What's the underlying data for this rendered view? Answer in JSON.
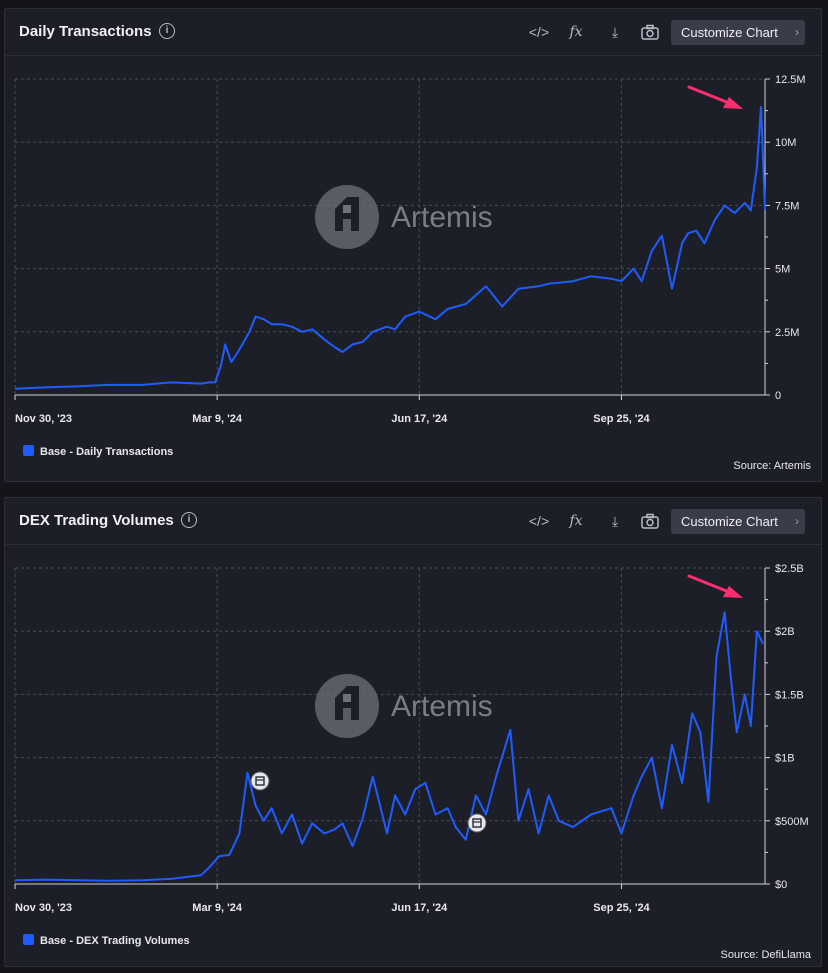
{
  "charts": [
    {
      "title": "Daily Transactions",
      "customize_label": "Customize Chart",
      "legend_label": "Base - Daily Transactions",
      "source": "Source: Artemis",
      "watermark": "Artemis",
      "y_ticks": [
        "0",
        "2.5M",
        "5M",
        "7.5M",
        "10M",
        "12.5M"
      ],
      "x_ticks": [
        "Nov 30, '23",
        "Mar 9, '24",
        "Jun 17, '24",
        "Sep 25, '24"
      ]
    },
    {
      "title": "DEX Trading Volumes",
      "customize_label": "Customize Chart",
      "legend_label": "Base - DEX Trading Volumes",
      "source": "Source: DefiLlama",
      "watermark": "Artemis",
      "y_ticks": [
        "$0",
        "$500M",
        "$1B",
        "$1.5B",
        "$2B",
        "$2.5B"
      ],
      "x_ticks": [
        "Nov 30, '23",
        "Mar 9, '24",
        "Jun 17, '24",
        "Sep 25, '24"
      ]
    }
  ],
  "chart_data": [
    {
      "type": "line",
      "title": "Daily Transactions",
      "ylim": [
        0,
        12500000
      ],
      "xlim": [
        "2023-11-30",
        "2024-12-05"
      ],
      "series": [
        {
          "name": "Base - Daily Transactions",
          "color": "#1f5cff",
          "x": [
            "2023-11-30",
            "2023-12-15",
            "2024-01-01",
            "2024-01-15",
            "2024-02-01",
            "2024-02-15",
            "2024-03-01",
            "2024-03-05",
            "2024-03-08",
            "2024-03-11",
            "2024-03-13",
            "2024-03-16",
            "2024-03-20",
            "2024-03-25",
            "2024-03-28",
            "2024-04-01",
            "2024-04-05",
            "2024-04-10",
            "2024-04-15",
            "2024-04-20",
            "2024-04-25",
            "2024-05-01",
            "2024-05-06",
            "2024-05-10",
            "2024-05-15",
            "2024-05-20",
            "2024-05-25",
            "2024-06-01",
            "2024-06-05",
            "2024-06-10",
            "2024-06-17",
            "2024-06-25",
            "2024-07-01",
            "2024-07-10",
            "2024-07-20",
            "2024-07-28",
            "2024-08-05",
            "2024-08-15",
            "2024-08-20",
            "2024-09-01",
            "2024-09-10",
            "2024-09-20",
            "2024-09-25",
            "2024-10-01",
            "2024-10-05",
            "2024-10-10",
            "2024-10-15",
            "2024-10-20",
            "2024-10-25",
            "2024-10-28",
            "2024-11-01",
            "2024-11-05",
            "2024-11-10",
            "2024-11-15",
            "2024-11-20",
            "2024-11-25",
            "2024-11-28",
            "2024-12-01",
            "2024-12-03",
            "2024-12-05"
          ],
          "y": [
            250000,
            300000,
            350000,
            400000,
            400000,
            500000,
            450000,
            500000,
            500000,
            1200000,
            2000000,
            1300000,
            1800000,
            2500000,
            3100000,
            3000000,
            2800000,
            2800000,
            2700000,
            2500000,
            2600000,
            2200000,
            1900000,
            1700000,
            2000000,
            2100000,
            2500000,
            2700000,
            2600000,
            3100000,
            3300000,
            3000000,
            3400000,
            3600000,
            4300000,
            3500000,
            4200000,
            4300000,
            4400000,
            4500000,
            4700000,
            4600000,
            4500000,
            5000000,
            4500000,
            5700000,
            6300000,
            4200000,
            6000000,
            6400000,
            6500000,
            6000000,
            6900000,
            7500000,
            7200000,
            7600000,
            7300000,
            9000000,
            11400000,
            7300000
          ]
        }
      ]
    },
    {
      "type": "line",
      "title": "DEX Trading Volumes",
      "ylim": [
        0,
        2500000000
      ],
      "xlim": [
        "2023-11-30",
        "2024-12-05"
      ],
      "series": [
        {
          "name": "Base - DEX Trading Volumes",
          "color": "#1f5cff",
          "x": [
            "2023-11-30",
            "2023-12-15",
            "2024-01-01",
            "2024-01-15",
            "2024-02-01",
            "2024-02-15",
            "2024-03-01",
            "2024-03-05",
            "2024-03-10",
            "2024-03-15",
            "2024-03-20",
            "2024-03-24",
            "2024-03-28",
            "2024-04-01",
            "2024-04-05",
            "2024-04-10",
            "2024-04-15",
            "2024-04-20",
            "2024-04-25",
            "2024-05-01",
            "2024-05-06",
            "2024-05-10",
            "2024-05-15",
            "2024-05-20",
            "2024-05-25",
            "2024-06-01",
            "2024-06-05",
            "2024-06-10",
            "2024-06-15",
            "2024-06-20",
            "2024-06-25",
            "2024-07-01",
            "2024-07-05",
            "2024-07-10",
            "2024-07-15",
            "2024-07-20",
            "2024-07-25",
            "2024-08-01",
            "2024-08-05",
            "2024-08-10",
            "2024-08-15",
            "2024-08-20",
            "2024-08-25",
            "2024-09-01",
            "2024-09-10",
            "2024-09-20",
            "2024-09-25",
            "2024-10-01",
            "2024-10-05",
            "2024-10-10",
            "2024-10-15",
            "2024-10-20",
            "2024-10-25",
            "2024-10-30",
            "2024-11-03",
            "2024-11-07",
            "2024-11-11",
            "2024-11-15",
            "2024-11-18",
            "2024-11-21",
            "2024-11-25",
            "2024-11-28",
            "2024-12-01",
            "2024-12-04"
          ],
          "y": [
            30000000,
            35000000,
            30000000,
            25000000,
            30000000,
            40000000,
            70000000,
            130000000,
            220000000,
            230000000,
            400000000,
            880000000,
            620000000,
            500000000,
            600000000,
            400000000,
            550000000,
            320000000,
            480000000,
            400000000,
            430000000,
            480000000,
            300000000,
            520000000,
            850000000,
            400000000,
            700000000,
            550000000,
            750000000,
            800000000,
            550000000,
            600000000,
            450000000,
            350000000,
            700000000,
            550000000,
            850000000,
            1220000000,
            500000000,
            750000000,
            400000000,
            700000000,
            500000000,
            450000000,
            550000000,
            600000000,
            400000000,
            700000000,
            850000000,
            1000000000,
            600000000,
            1100000000,
            800000000,
            1350000000,
            1200000000,
            650000000,
            1800000000,
            2150000000,
            1650000000,
            1200000000,
            1500000000,
            1250000000,
            2000000000,
            1900000000
          ]
        }
      ]
    }
  ]
}
